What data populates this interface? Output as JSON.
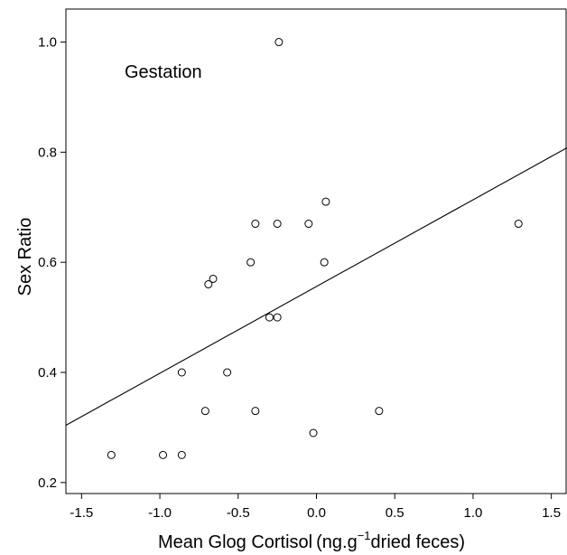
{
  "chart_data": {
    "type": "scatter",
    "title": "",
    "annotation": "Gestation",
    "xlabel": "Mean Glog Cortisol",
    "xlabel_unit_prefix": "(ng.g",
    "xlabel_unit_sup": "−1",
    "xlabel_unit_suffix": "dried feces)",
    "ylabel": "Sex Ratio",
    "xlim": [
      -1.6,
      1.6
    ],
    "ylim": [
      0.18,
      1.06
    ],
    "xticks": [
      -1.5,
      -1.0,
      -0.5,
      0.0,
      0.5,
      1.0,
      1.5
    ],
    "xtick_labels": [
      "-1.5",
      "-1.0",
      "-0.5",
      "0.0",
      "0.5",
      "1.0",
      "1.5"
    ],
    "yticks": [
      0.2,
      0.4,
      0.6,
      0.8,
      1.0
    ],
    "ytick_labels": [
      "0.2",
      "0.4",
      "0.6",
      "0.8",
      "1.0"
    ],
    "grid": false,
    "points": [
      {
        "x": -1.31,
        "y": 0.25
      },
      {
        "x": -0.98,
        "y": 0.25
      },
      {
        "x": -0.86,
        "y": 0.25
      },
      {
        "x": -0.86,
        "y": 0.4
      },
      {
        "x": -0.71,
        "y": 0.33
      },
      {
        "x": -0.69,
        "y": 0.56
      },
      {
        "x": -0.66,
        "y": 0.57
      },
      {
        "x": -0.57,
        "y": 0.4
      },
      {
        "x": -0.42,
        "y": 0.6
      },
      {
        "x": -0.39,
        "y": 0.67
      },
      {
        "x": -0.39,
        "y": 0.33
      },
      {
        "x": -0.3,
        "y": 0.5
      },
      {
        "x": -0.25,
        "y": 0.5
      },
      {
        "x": -0.25,
        "y": 0.67
      },
      {
        "x": -0.24,
        "y": 1.0
      },
      {
        "x": -0.05,
        "y": 0.67
      },
      {
        "x": -0.02,
        "y": 0.29
      },
      {
        "x": 0.05,
        "y": 0.6
      },
      {
        "x": 0.06,
        "y": 0.71
      },
      {
        "x": 0.4,
        "y": 0.33
      },
      {
        "x": 1.29,
        "y": 0.67
      }
    ],
    "fit_line": {
      "x": [
        -1.6,
        1.6
      ],
      "y": [
        0.304,
        0.808
      ]
    }
  }
}
